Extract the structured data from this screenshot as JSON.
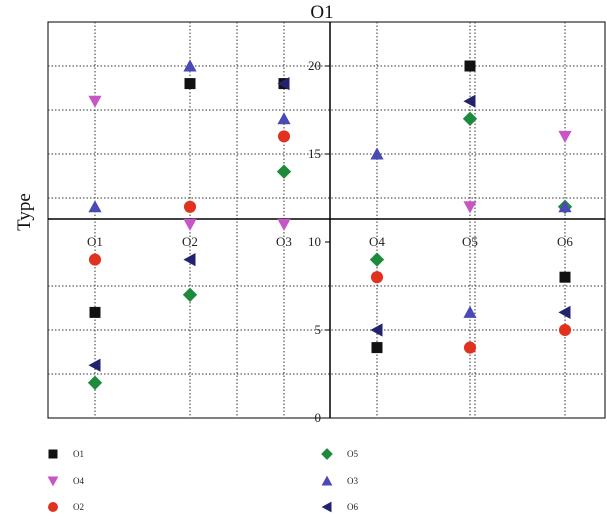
{
  "chart_data": {
    "type": "scatter",
    "title": "O1",
    "ylabel": "Type",
    "categories": [
      "O1",
      "O2",
      "O3",
      "O4",
      "O5",
      "O6"
    ],
    "ylim": [
      0,
      22.5
    ],
    "yticks": [
      0,
      5,
      10,
      15,
      20
    ],
    "grid": true,
    "legend_placement": "bottom",
    "series": [
      {
        "name": "O1",
        "marker": "square",
        "color": "#111111",
        "values": [
          6,
          19,
          19,
          4,
          20,
          8
        ]
      },
      {
        "name": "O4",
        "marker": "triangle-down",
        "color": "#c855c8",
        "values": [
          18,
          11,
          11,
          null,
          12,
          16
        ]
      },
      {
        "name": "O2",
        "marker": "circle",
        "color": "#e0321e",
        "values": [
          9,
          12,
          16,
          8,
          4,
          5
        ]
      },
      {
        "name": "O5",
        "marker": "diamond",
        "color": "#1e8a3c",
        "values": [
          2,
          7,
          14,
          9,
          17,
          12
        ]
      },
      {
        "name": "O3",
        "marker": "triangle-up",
        "color": "#4a4ab4",
        "values": [
          12,
          20,
          17,
          15,
          6,
          12
        ]
      },
      {
        "name": "O6",
        "marker": "triangle-left",
        "color": "#22226e",
        "values": [
          3,
          9,
          19,
          5,
          18,
          6
        ]
      }
    ]
  }
}
